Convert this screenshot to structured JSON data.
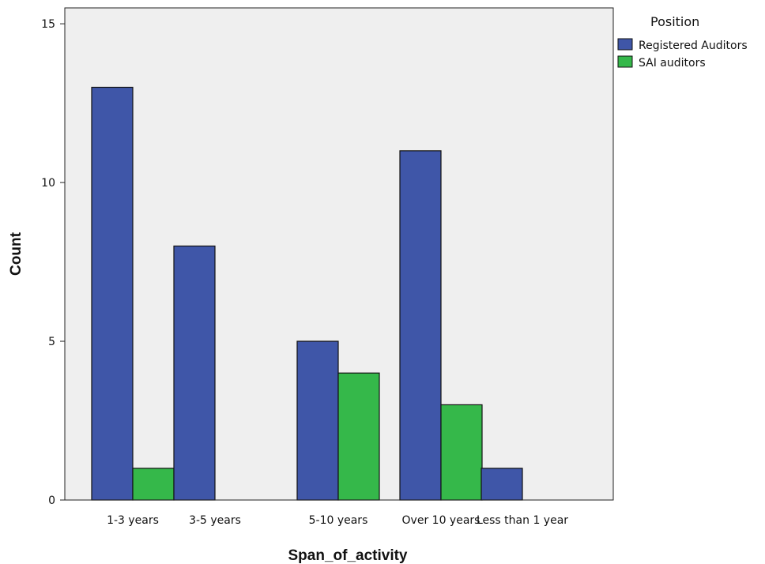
{
  "chart_data": {
    "type": "bar",
    "categories": [
      "1-3 years",
      "3-5 years",
      "5-10 years",
      "Over 10 years",
      "Less than 1 year"
    ],
    "series": [
      {
        "name": "Registered Auditors",
        "values": [
          13,
          8,
          5,
          11,
          1
        ],
        "color": "#3f56a8"
      },
      {
        "name": "SAI auditors",
        "values": [
          1,
          0,
          4,
          3,
          0
        ],
        "color": "#35b84a"
      }
    ],
    "xlabel": "Span_of_activity",
    "ylabel": "Count",
    "ylim": [
      0,
      15
    ],
    "yticks": [
      0,
      5,
      10,
      15
    ],
    "legend_title": "Position",
    "legend_position": "top-right",
    "plot_background": "#efefef",
    "grid": false
  }
}
